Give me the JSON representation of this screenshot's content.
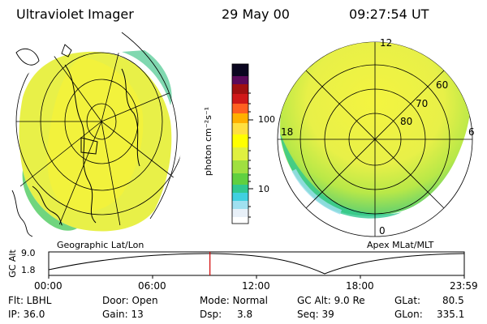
{
  "header": {
    "instrument": "Ultraviolet Imager",
    "date": "29 May 00",
    "time": "09:27:54 UT"
  },
  "colorbar": {
    "unit_label": "photon cm⁻²s⁻¹",
    "tick_labels": [
      "100",
      "10"
    ],
    "colors": [
      "#0a0620",
      "#3a0a4a",
      "#5a0a5a",
      "#7a0a30",
      "#a01010",
      "#d01818",
      "#ff6020",
      "#ffb000",
      "#ffe040",
      "#ffff00",
      "#e0f040",
      "#a0e040",
      "#60d040",
      "#30c890",
      "#40d0e0",
      "#a0e0f0",
      "#e8f0f8",
      "#ffffff"
    ]
  },
  "left_panel": {
    "label": "Geographic Lat/Lon"
  },
  "right_panel": {
    "label": "Apex MLat/MLT",
    "mlt_labels": {
      "top": "12",
      "left": "18",
      "right": "6",
      "bottom": "0"
    },
    "lat_labels": [
      "60",
      "70",
      "80"
    ]
  },
  "altitude_plot": {
    "axis_label": "GC Alt",
    "y_ticks": [
      "9.0",
      "1.8"
    ],
    "x_ticks": [
      "00:00",
      "06:00",
      "12:00",
      "18:00",
      "23:59"
    ],
    "current_time_fraction": 0.388,
    "marker_color": "#d00000"
  },
  "info": {
    "filter": "Flt: LBHL",
    "ip": "IP: 36.0",
    "door": "Door: Open",
    "gain": "Gain: 13",
    "mode": "Mode: Normal",
    "dsp_label": "Dsp:",
    "dsp_value": "3.8",
    "gc_alt": "GC Alt: 9.0 Re",
    "seq": "Seq: 39",
    "glat": "GLat:",
    "glat_value": "80.5",
    "glon": "GLon:",
    "glon_value": "335.1"
  }
}
